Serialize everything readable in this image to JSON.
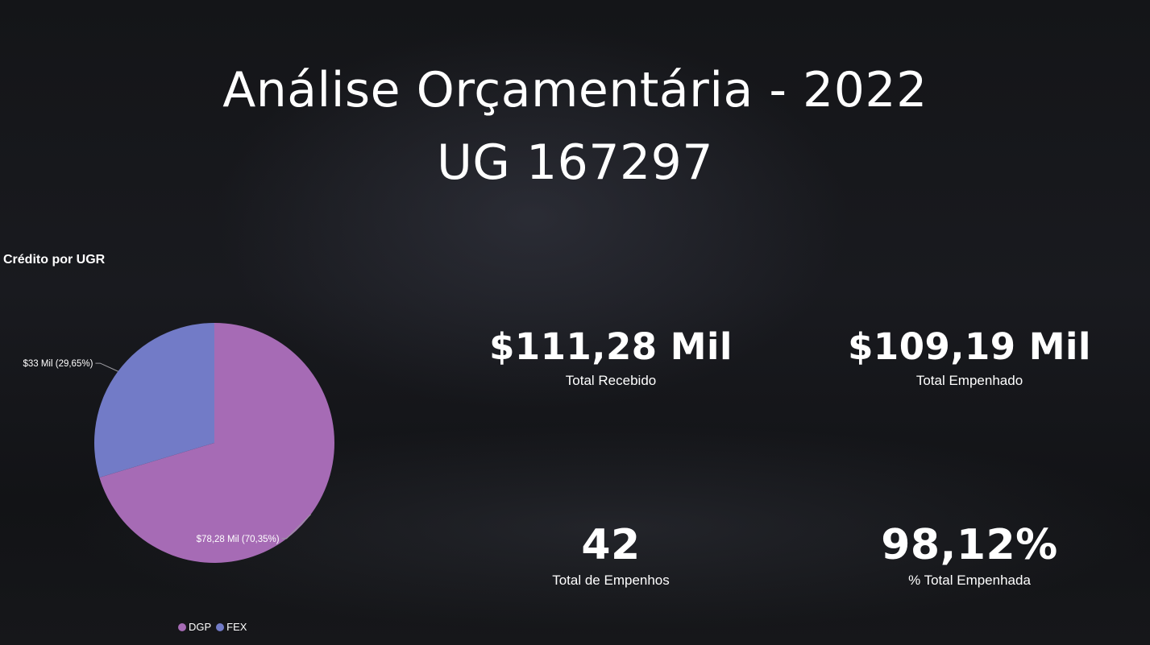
{
  "header": {
    "title_line1": "Análise Orçamentária - 2022",
    "title_line2": "UG 167297"
  },
  "colors": {
    "dgp": "#a66bb5",
    "fex": "#727bc7"
  },
  "chart_data": {
    "type": "pie",
    "title": "Crédito por UGR",
    "slices": [
      {
        "name": "DGP",
        "value": 78.28,
        "percent": 70.35,
        "label": "$78,28 Mil (70,35%)"
      },
      {
        "name": "FEX",
        "value": 33,
        "percent": 29.65,
        "label": "$33 Mil (29,65%)"
      }
    ],
    "legend": [
      "DGP",
      "FEX"
    ],
    "legend_position": "bottom"
  },
  "kpis": {
    "total_recebido": {
      "value": "$111,28 Mil",
      "label": "Total Recebido"
    },
    "total_empenhado": {
      "value": "$109,19 Mil",
      "label": "Total Empenhado"
    },
    "total_empenhos": {
      "value": "42",
      "label": "Total de Empenhos"
    },
    "percent_empenhada": {
      "value": "98,12%",
      "label": "% Total Empenhada"
    }
  }
}
